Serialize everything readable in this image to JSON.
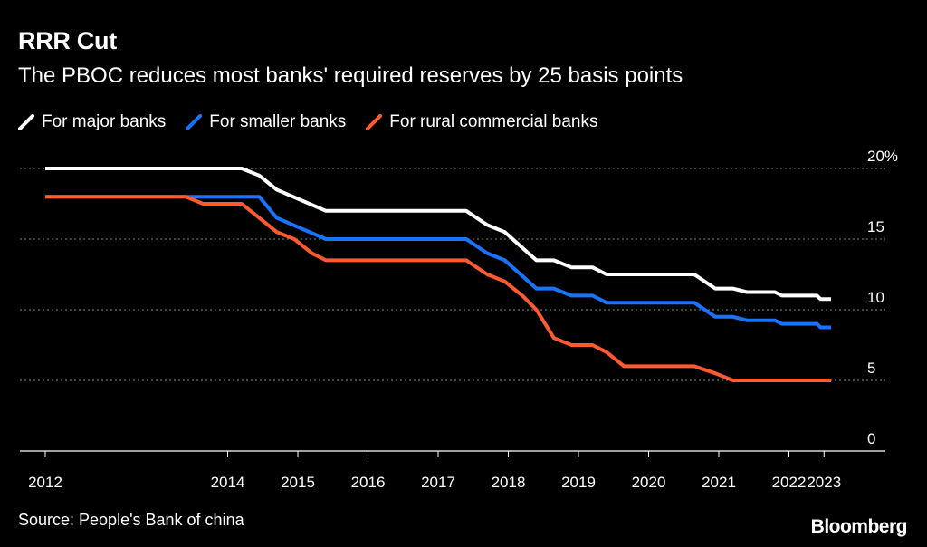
{
  "chart_data": {
    "type": "line",
    "title": "RRR Cut",
    "subtitle": "The PBOC reduces most banks' required reserves by 25 basis points",
    "source": "Source: People's Bank of china",
    "brand": "Bloomberg",
    "xlabel": "",
    "ylabel": "",
    "xlim": [
      2012,
      2023
    ],
    "ylim": [
      0,
      20
    ],
    "y_ticks": [
      {
        "value": 0,
        "label": "0"
      },
      {
        "value": 5,
        "label": "5"
      },
      {
        "value": 10,
        "label": "10"
      },
      {
        "value": 15,
        "label": "15"
      },
      {
        "value": 20,
        "label": "20%"
      }
    ],
    "x_ticks": [
      {
        "value": 2012,
        "label": "2012"
      },
      {
        "value": 2014.6,
        "label": "2014"
      },
      {
        "value": 2015.6,
        "label": "2015"
      },
      {
        "value": 2016.6,
        "label": "2016"
      },
      {
        "value": 2017.6,
        "label": "2017"
      },
      {
        "value": 2018.6,
        "label": "2018"
      },
      {
        "value": 2019.6,
        "label": "2019"
      },
      {
        "value": 2020.6,
        "label": "2020"
      },
      {
        "value": 2021.6,
        "label": "2021"
      },
      {
        "value": 2022.6,
        "label": "2022"
      },
      {
        "value": 2023.1,
        "label": "2023"
      }
    ],
    "grid": true,
    "legend": "top-left",
    "series": [
      {
        "name": "For major banks",
        "color": "#ffffff",
        "points": [
          [
            2012.0,
            20.0
          ],
          [
            2014.8,
            20.0
          ],
          [
            2015.05,
            19.5
          ],
          [
            2015.3,
            18.5
          ],
          [
            2016.0,
            17.0
          ],
          [
            2018.0,
            17.0
          ],
          [
            2018.3,
            16.0
          ],
          [
            2018.55,
            15.5
          ],
          [
            2019.0,
            13.5
          ],
          [
            2019.25,
            13.5
          ],
          [
            2019.5,
            13.0
          ],
          [
            2019.8,
            13.0
          ],
          [
            2020.0,
            12.5
          ],
          [
            2021.25,
            12.5
          ],
          [
            2021.55,
            11.5
          ],
          [
            2021.8,
            11.5
          ],
          [
            2022.0,
            11.25
          ],
          [
            2022.4,
            11.25
          ],
          [
            2022.5,
            11.0
          ],
          [
            2023.0,
            11.0
          ],
          [
            2023.05,
            10.75
          ],
          [
            2023.2,
            10.75
          ]
        ]
      },
      {
        "name": "For smaller banks",
        "color": "#1a73ff",
        "points": [
          [
            2012.0,
            18.0
          ],
          [
            2015.05,
            18.0
          ],
          [
            2015.3,
            16.5
          ],
          [
            2016.0,
            15.0
          ],
          [
            2018.0,
            15.0
          ],
          [
            2018.3,
            14.0
          ],
          [
            2018.55,
            13.5
          ],
          [
            2019.0,
            11.5
          ],
          [
            2019.25,
            11.5
          ],
          [
            2019.5,
            11.0
          ],
          [
            2019.8,
            11.0
          ],
          [
            2020.0,
            10.5
          ],
          [
            2021.25,
            10.5
          ],
          [
            2021.55,
            9.5
          ],
          [
            2021.8,
            9.5
          ],
          [
            2022.0,
            9.25
          ],
          [
            2022.4,
            9.25
          ],
          [
            2022.5,
            9.0
          ],
          [
            2023.0,
            9.0
          ],
          [
            2023.05,
            8.75
          ],
          [
            2023.2,
            8.75
          ]
        ]
      },
      {
        "name": "For rural commercial banks",
        "color": "#ff5a30",
        "points": [
          [
            2012.0,
            18.0
          ],
          [
            2014.0,
            18.0
          ],
          [
            2014.25,
            17.5
          ],
          [
            2014.8,
            17.5
          ],
          [
            2015.05,
            16.5
          ],
          [
            2015.3,
            15.5
          ],
          [
            2015.55,
            15.0
          ],
          [
            2015.8,
            14.0
          ],
          [
            2016.0,
            13.5
          ],
          [
            2018.0,
            13.5
          ],
          [
            2018.3,
            12.5
          ],
          [
            2018.55,
            12.0
          ],
          [
            2018.8,
            11.0
          ],
          [
            2019.0,
            10.0
          ],
          [
            2019.25,
            8.0
          ],
          [
            2019.5,
            7.5
          ],
          [
            2019.8,
            7.5
          ],
          [
            2020.0,
            7.0
          ],
          [
            2020.25,
            6.0
          ],
          [
            2021.25,
            6.0
          ],
          [
            2021.55,
            5.5
          ],
          [
            2021.8,
            5.0
          ],
          [
            2023.2,
            5.0
          ]
        ]
      }
    ]
  }
}
